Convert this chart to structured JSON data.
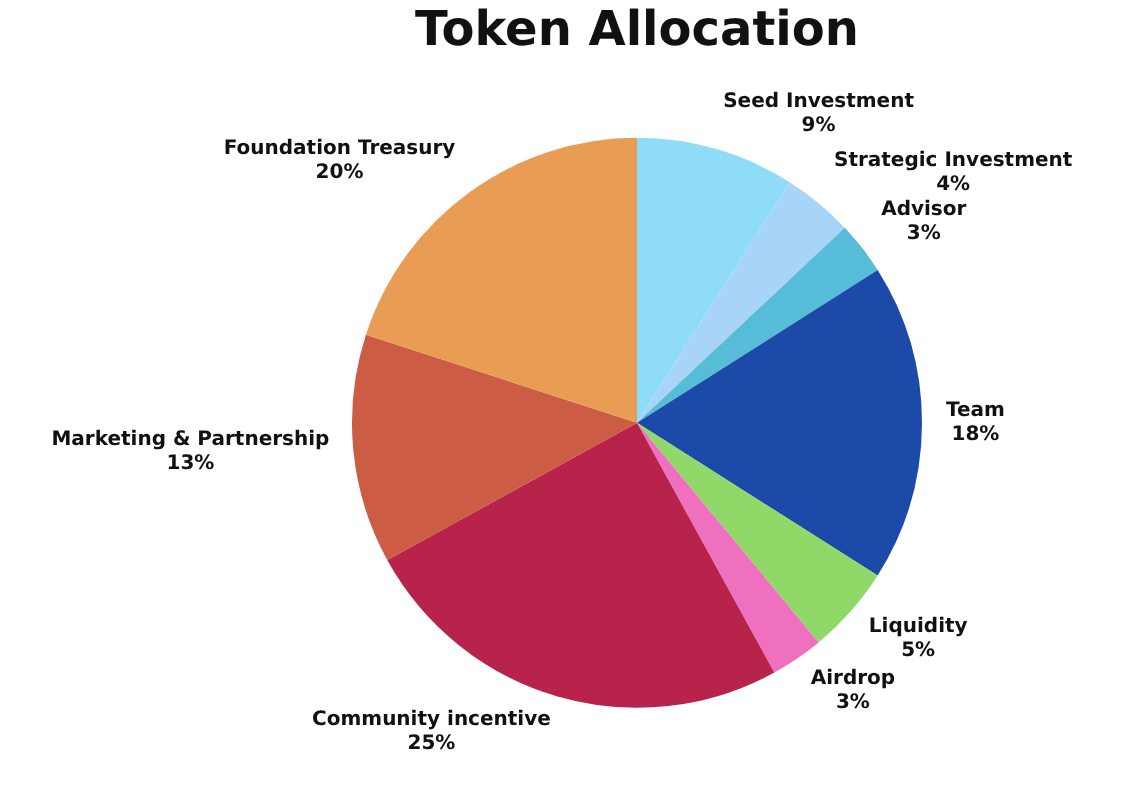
{
  "chart_data": {
    "type": "pie",
    "title": "Token Allocation",
    "categories": [
      "Seed Investment",
      "Strategic Investment",
      "Advisor",
      "Team",
      "Liquidity",
      "Airdrop",
      "Community incentive",
      "Marketing & Partnership",
      "Foundation Treasury"
    ],
    "values": [
      9,
      4,
      3,
      18,
      5,
      3,
      25,
      13,
      20
    ],
    "value_labels": [
      "9%",
      "4%",
      "3%",
      "18%",
      "5%",
      "3%",
      "25%",
      "13%",
      "20%"
    ],
    "colors": [
      "#8fdcf8",
      "#a8d4f8",
      "#56bcd8",
      "#1c4aa8",
      "#90d868",
      "#f070c0",
      "#b8234c",
      "#cc5c44",
      "#e89c54"
    ],
    "legend": false
  }
}
